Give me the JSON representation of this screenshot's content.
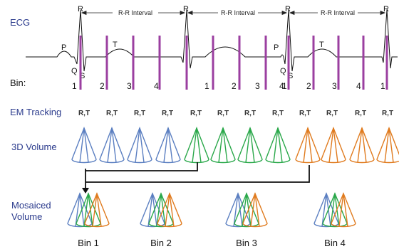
{
  "ecg": {
    "label": "ECG",
    "bin_label": "Bin:",
    "peaks": [
      {
        "r": "R",
        "p": "P",
        "q": "Q",
        "s": "S",
        "t": "T"
      },
      {
        "r": "R",
        "p": "",
        "q": "",
        "s": "",
        "t": ""
      },
      {
        "r": "R",
        "p": "P",
        "q": "Q",
        "s": "S",
        "t": "T"
      },
      {
        "r": "R",
        "p": "",
        "q": "",
        "s": "",
        "t": ""
      }
    ],
    "intervals": [
      "R-R Interval",
      "R-R Interval",
      "R-R Interval"
    ],
    "bin_numbers": [
      "1",
      "2",
      "3",
      "4",
      "1",
      "2",
      "3",
      "4",
      "1",
      "2",
      "3",
      "4",
      "1"
    ]
  },
  "em_tracking": {
    "label": "EM Tracking",
    "tags": [
      "R,T",
      "R,T",
      "R,T",
      "R,T",
      "R,T",
      "R,T",
      "R,T",
      "R,T",
      "R,T",
      "R,T",
      "R,T",
      "R,T"
    ]
  },
  "volume": {
    "label": "3D Volume",
    "colors": [
      "#5b7fc1",
      "#5b7fc1",
      "#5b7fc1",
      "#5b7fc1",
      "#2aa84a",
      "#2aa84a",
      "#2aa84a",
      "#2aa84a",
      "#e07b1f",
      "#e07b1f",
      "#e07b1f",
      "#e07b1f"
    ]
  },
  "mosaic": {
    "label_line1": "Mosaiced",
    "label_line2": "Volume",
    "bins": [
      "Bin 1",
      "Bin 2",
      "Bin 3",
      "Bin 4"
    ]
  },
  "colors": {
    "label_text": "#2a3a8c",
    "bin_marker": "#9b3fa0",
    "bin_blue": "#5b7fc1",
    "bin_green": "#2aa84a",
    "bin_orange": "#e07b1f"
  }
}
